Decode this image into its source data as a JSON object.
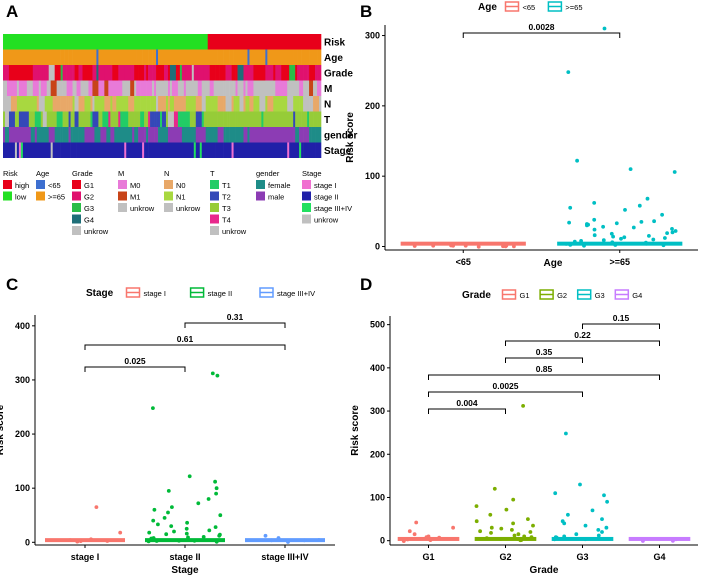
{
  "panels": {
    "A": "A",
    "B": "B",
    "C": "C",
    "D": "D"
  },
  "heatmap": {
    "rows": [
      "Risk",
      "Age",
      "Grade",
      "M",
      "N",
      "T",
      "gender",
      "Stage"
    ],
    "legend": [
      {
        "title": "Risk",
        "items": [
          {
            "label": "high",
            "color": "#e8001a"
          },
          {
            "label": "low",
            "color": "#22e022"
          }
        ]
      },
      {
        "title": "Age",
        "items": [
          {
            "label": "<65",
            "color": "#3d6fd0"
          },
          {
            "label": ">=65",
            "color": "#f09818"
          }
        ]
      },
      {
        "title": "Grade",
        "items": [
          {
            "label": "G1",
            "color": "#e8001a"
          },
          {
            "label": "G2",
            "color": "#e0116e"
          },
          {
            "label": "G3",
            "color": "#2bbd48"
          },
          {
            "label": "G4",
            "color": "#1e6e78"
          },
          {
            "label": "unkrow",
            "color": "#c0c0c0"
          }
        ]
      },
      {
        "title": "M",
        "items": [
          {
            "label": "M0",
            "color": "#e87ad8"
          },
          {
            "label": "M1",
            "color": "#c84418"
          },
          {
            "label": "unkrow",
            "color": "#c0c0c0"
          }
        ]
      },
      {
        "title": "N",
        "items": [
          {
            "label": "N0",
            "color": "#e8a868"
          },
          {
            "label": "N1",
            "color": "#a8d840"
          },
          {
            "label": "unkrow",
            "color": "#c0c0c0"
          }
        ]
      },
      {
        "title": "T",
        "items": [
          {
            "label": "T1",
            "color": "#22cc66"
          },
          {
            "label": "T2",
            "color": "#3448b8"
          },
          {
            "label": "T3",
            "color": "#96cc38"
          },
          {
            "label": "T4",
            "color": "#e8288c"
          },
          {
            "label": "unkrow",
            "color": "#c0c0c0"
          }
        ]
      },
      {
        "title": "gender",
        "items": [
          {
            "label": "female",
            "color": "#1e8c88"
          },
          {
            "label": "male",
            "color": "#8c3cb4"
          }
        ]
      },
      {
        "title": "Stage",
        "items": [
          {
            "label": "stage I",
            "color": "#f070d0"
          },
          {
            "label": "stage II",
            "color": "#2020a8"
          },
          {
            "label": "stage III+IV",
            "color": "#22e060"
          },
          {
            "label": "unkrow",
            "color": "#c0c0c0"
          }
        ]
      }
    ]
  },
  "chart_data": [
    {
      "id": "B",
      "type": "scatter",
      "title": "",
      "legend_title": "Age",
      "xlabel": "Age",
      "ylabel": "Risk score",
      "categories": [
        "<65",
        ">=65"
      ],
      "series": [
        {
          "name": "<65",
          "color": "#f8766d",
          "values": [
            0,
            0,
            0,
            0,
            0,
            0,
            0,
            0,
            0,
            0
          ]
        },
        {
          "name": ">=65",
          "color": "#00bfc4",
          "values": [
            310,
            248,
            122,
            110,
            106,
            68,
            62,
            58,
            55,
            52,
            45,
            38,
            36,
            35,
            34,
            33,
            32,
            31,
            30,
            28,
            27,
            25,
            24,
            22,
            20,
            19,
            18,
            16,
            15,
            14,
            13,
            12,
            11,
            10,
            9,
            8,
            7,
            6,
            5,
            5,
            4,
            3,
            2,
            2,
            1
          ]
        }
      ],
      "ylim": [
        -5,
        315
      ],
      "yticks": [
        0,
        100,
        200,
        300
      ],
      "comparisons": [
        {
          "from": "<65",
          "to": ">=65",
          "label": "0.0028"
        }
      ]
    },
    {
      "id": "C",
      "type": "scatter",
      "title": "",
      "legend_title": "Stage",
      "xlabel": "Stage",
      "ylabel": "Risk score",
      "categories": [
        "stage I",
        "stage II",
        "stage III+IV"
      ],
      "series": [
        {
          "name": "stage I",
          "color": "#f8766d",
          "values": [
            65,
            18,
            5,
            4,
            3,
            2,
            2,
            1
          ]
        },
        {
          "name": "stage II",
          "color": "#00ba38",
          "values": [
            312,
            308,
            248,
            122,
            112,
            100,
            95,
            90,
            80,
            72,
            65,
            60,
            55,
            50,
            45,
            40,
            36,
            33,
            30,
            28,
            25,
            22,
            20,
            18,
            16,
            15,
            14,
            12,
            10,
            9,
            8,
            7,
            6,
            5,
            4,
            3,
            2,
            2,
            1
          ]
        },
        {
          "name": "stage III+IV",
          "color": "#619cff",
          "values": [
            12,
            8,
            5,
            3,
            2,
            1
          ]
        }
      ],
      "ylim": [
        -5,
        420
      ],
      "yticks": [
        0,
        100,
        200,
        300,
        400
      ],
      "comparisons": [
        {
          "from": "stage II",
          "to": "stage III+IV",
          "label": "0.31"
        },
        {
          "from": "stage I",
          "to": "stage III+IV",
          "label": "0.61"
        },
        {
          "from": "stage I",
          "to": "stage II",
          "label": "0.025"
        }
      ]
    },
    {
      "id": "D",
      "type": "scatter",
      "title": "",
      "legend_title": "Grade",
      "xlabel": "Grade",
      "ylabel": "Risk score",
      "categories": [
        "G1",
        "G2",
        "G3",
        "G4"
      ],
      "series": [
        {
          "name": "G1",
          "color": "#f8766d",
          "values": [
            42,
            30,
            22,
            15,
            10,
            8,
            5,
            3,
            2,
            1
          ]
        },
        {
          "name": "G2",
          "color": "#7cae00",
          "values": [
            312,
            120,
            95,
            80,
            72,
            60,
            50,
            45,
            40,
            35,
            30,
            28,
            25,
            22,
            20,
            18,
            15,
            12,
            10,
            8,
            6,
            4,
            3,
            2,
            1
          ]
        },
        {
          "name": "G3",
          "color": "#00bfc4",
          "values": [
            248,
            130,
            110,
            105,
            90,
            70,
            60,
            50,
            45,
            40,
            35,
            30,
            25,
            20,
            15,
            12,
            10,
            8,
            5,
            3,
            2,
            1
          ]
        },
        {
          "name": "G4",
          "color": "#c77cff",
          "values": [
            1,
            1,
            1
          ]
        }
      ],
      "ylim": [
        -10,
        520
      ],
      "yticks": [
        0,
        100,
        200,
        300,
        400,
        500
      ],
      "comparisons": [
        {
          "from": "G3",
          "to": "G4",
          "label": "0.15"
        },
        {
          "from": "G2",
          "to": "G4",
          "label": "0.22"
        },
        {
          "from": "G2",
          "to": "G3",
          "label": "0.35"
        },
        {
          "from": "G1",
          "to": "G4",
          "label": "0.85"
        },
        {
          "from": "G1",
          "to": "G3",
          "label": "0.0025"
        },
        {
          "from": "G1",
          "to": "G2",
          "label": "0.004"
        }
      ]
    }
  ]
}
